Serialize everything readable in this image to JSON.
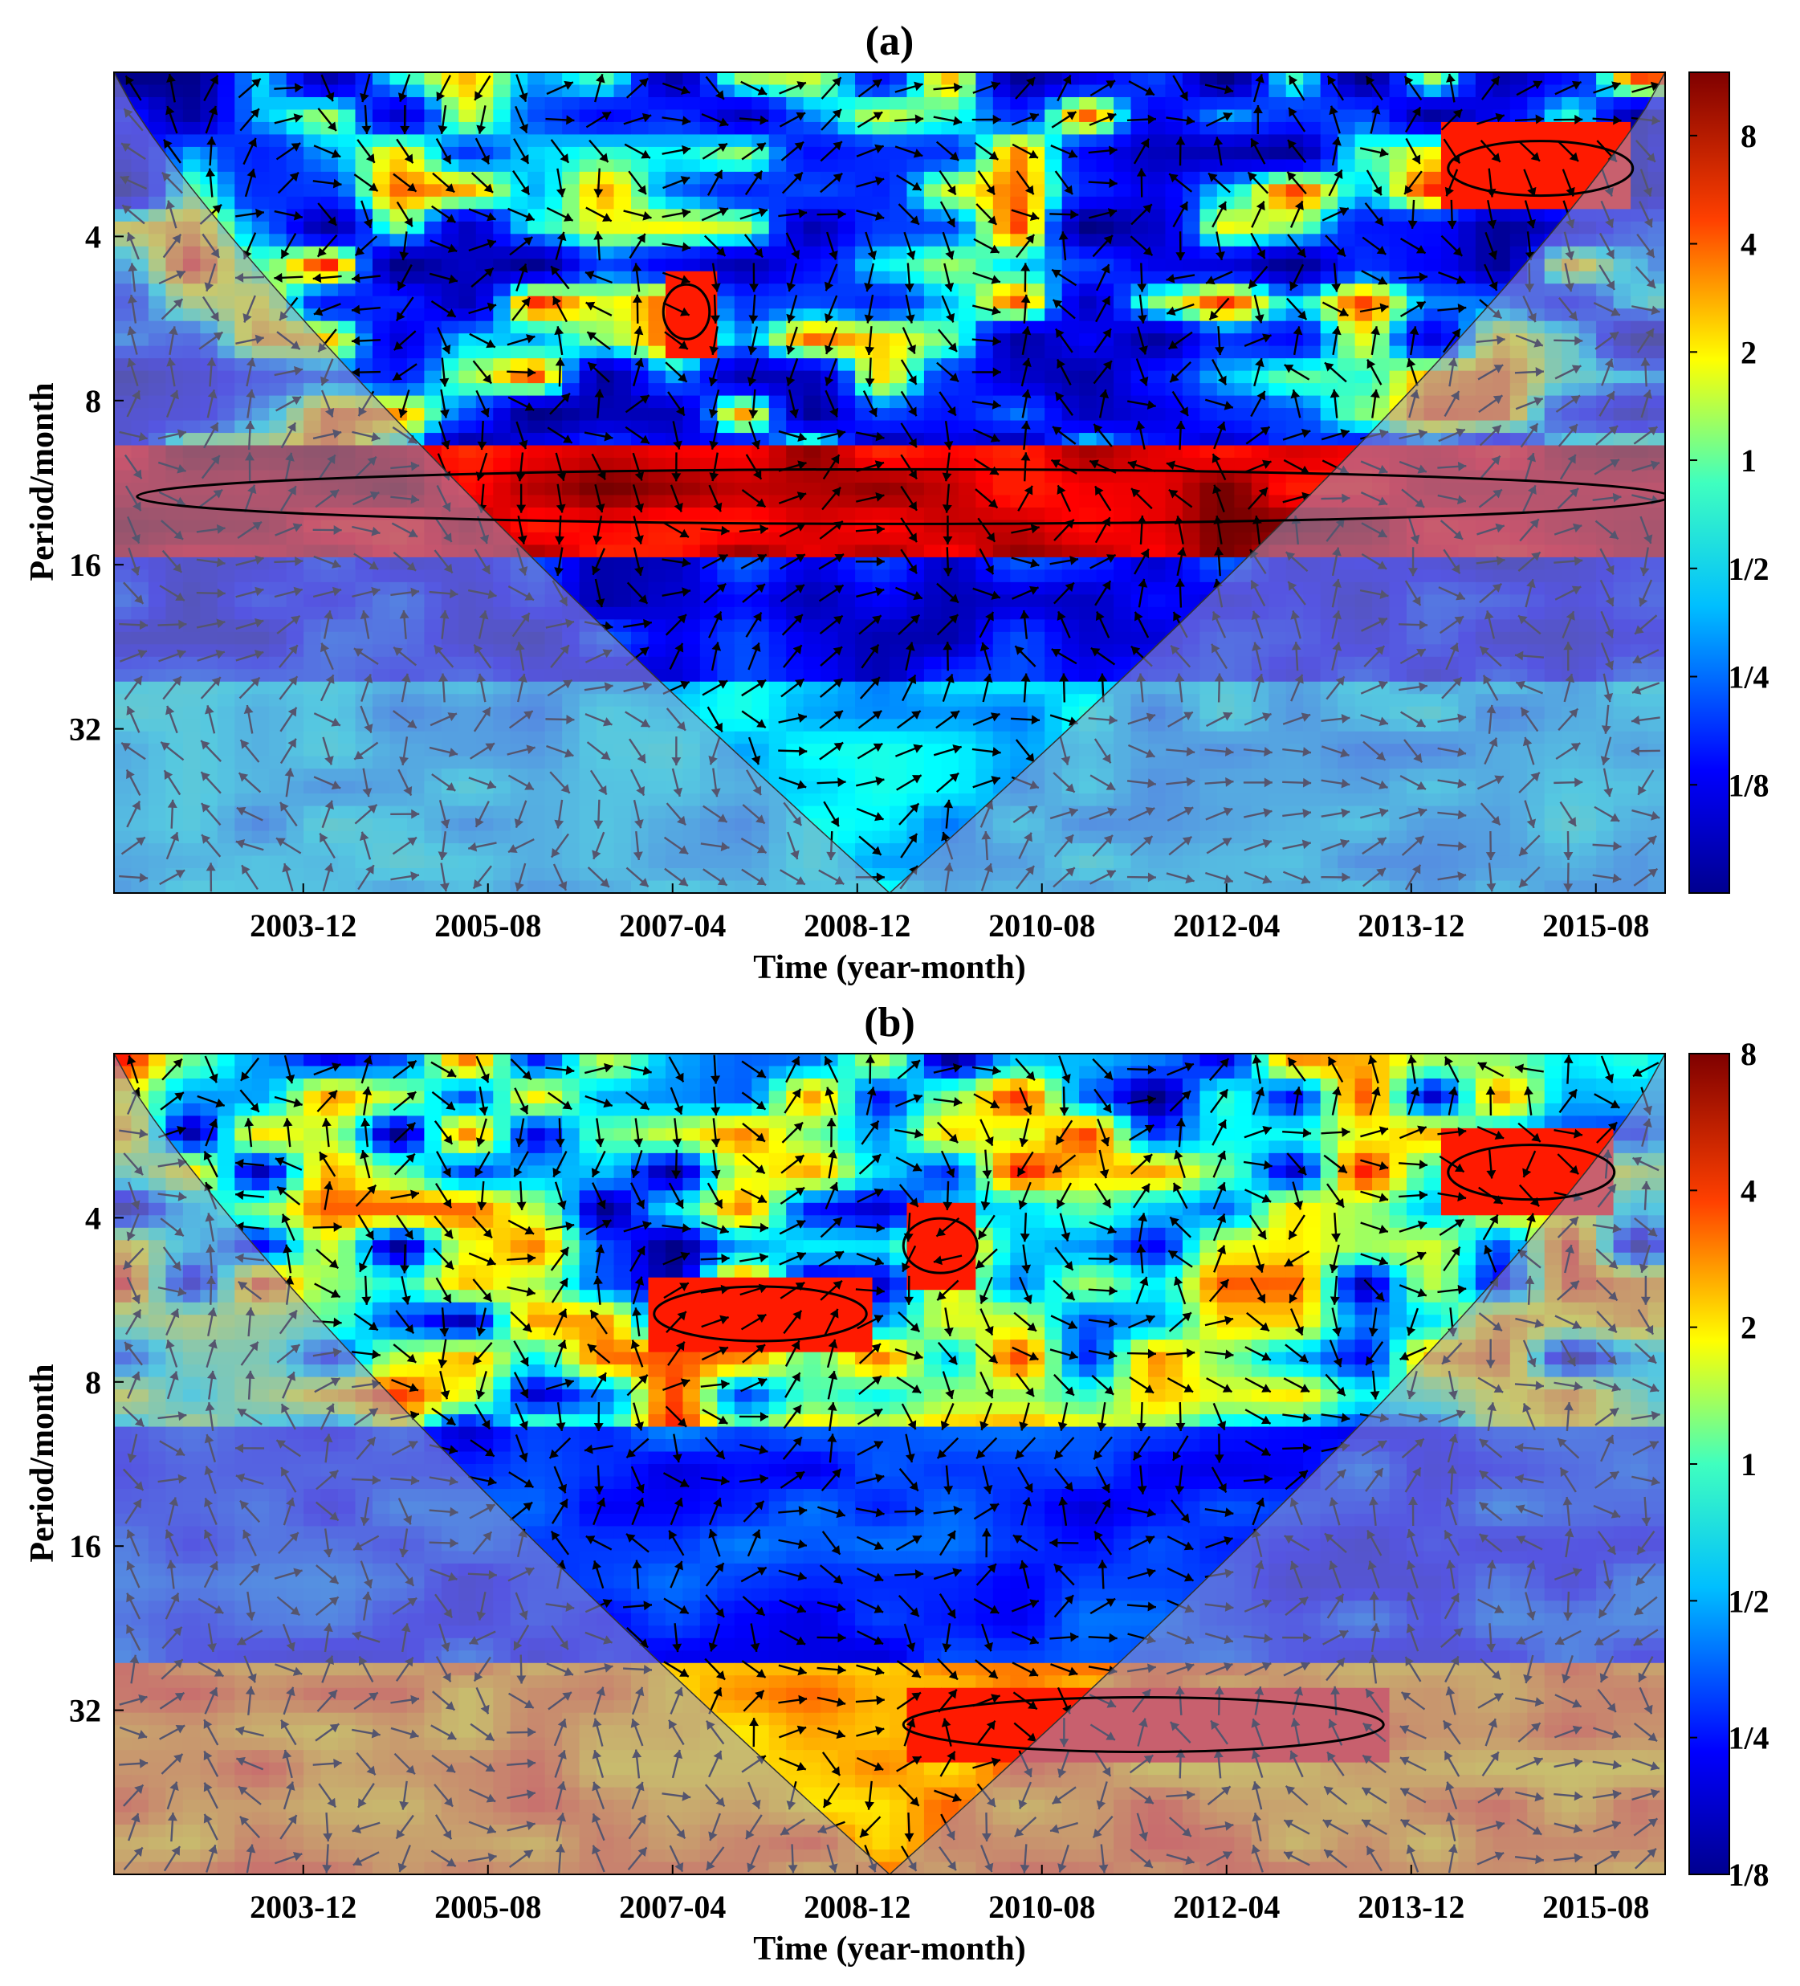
{
  "chart_data": [
    {
      "type": "heatmap",
      "subtype": "wavelet coherence",
      "title": "(a)",
      "xlabel": "Time (year-month)",
      "ylabel": "Period/month",
      "x_ticks": [
        "2003-12",
        "2005-08",
        "2007-04",
        "2008-12",
        "2010-08",
        "2012-04",
        "2013-12",
        "2015-08"
      ],
      "y_ticks": [
        "4",
        "8",
        "16",
        "32"
      ],
      "y_scale": "log2",
      "ylim": [
        2,
        64
      ],
      "colorbar": {
        "ticks": [
          "8",
          "4",
          "2",
          "1",
          "1/2",
          "1/4",
          "1/8"
        ],
        "range": [
          0.0625,
          12
        ],
        "scale": "log2"
      },
      "bands": [
        {
          "period_range": [
            2,
            9
          ],
          "level": "low, patchy"
        },
        {
          "period_range": [
            10,
            15
          ],
          "level": 8,
          "significant": true
        },
        {
          "period_range": [
            16,
            24
          ],
          "level": 0.125
        },
        {
          "period_range": [
            28,
            45
          ],
          "level": 0.35
        }
      ],
      "significant_regions": [
        {
          "period_center": 12,
          "time_range": [
            "2002-06",
            "2016-04"
          ]
        },
        {
          "period_center": 5.5,
          "time_range": [
            "2007-03",
            "2007-08"
          ]
        },
        {
          "period_center": 3,
          "time_range": [
            "2014-04",
            "2015-12"
          ]
        }
      ],
      "cone_of_influence": true,
      "phase_arrows": true
    },
    {
      "type": "heatmap",
      "subtype": "wavelet coherence",
      "title": "(b)",
      "xlabel": "Time (year-month)",
      "ylabel": "Period/month",
      "x_ticks": [
        "2003-12",
        "2005-08",
        "2007-04",
        "2008-12",
        "2010-08",
        "2012-04",
        "2013-12",
        "2015-08"
      ],
      "y_ticks": [
        "4",
        "8",
        "16",
        "32"
      ],
      "y_scale": "log2",
      "ylim": [
        2,
        64
      ],
      "colorbar": {
        "ticks": [
          "8",
          "4",
          "2",
          "1",
          "1/2",
          "1/4",
          "1/8"
        ],
        "range": [
          0.125,
          8
        ],
        "scale": "log2"
      },
      "bands": [
        {
          "period_range": [
            2,
            9
          ],
          "level": "mixed"
        },
        {
          "period_range": [
            10,
            24
          ],
          "level": 0.15
        },
        {
          "period_range": [
            30,
            40
          ],
          "level": 3,
          "significant": true
        }
      ],
      "significant_regions": [
        {
          "period_center": 6,
          "time_range": [
            "2007-02",
            "2009-01"
          ]
        },
        {
          "period_center": 4.5,
          "time_range": [
            "2009-05",
            "2010-01"
          ]
        },
        {
          "period_center": 3.3,
          "time_range": [
            "2014-04",
            "2015-10"
          ]
        },
        {
          "period_center": 34,
          "time_range": [
            "2009-05",
            "2013-09"
          ]
        }
      ],
      "cone_of_influence": true,
      "phase_arrows": true
    }
  ],
  "colors": {
    "low": "#00008f",
    "mid": "#2ecfff",
    "high": "#ffd900",
    "max": "#7a0000",
    "coi_shade": "#9a9ac8"
  }
}
